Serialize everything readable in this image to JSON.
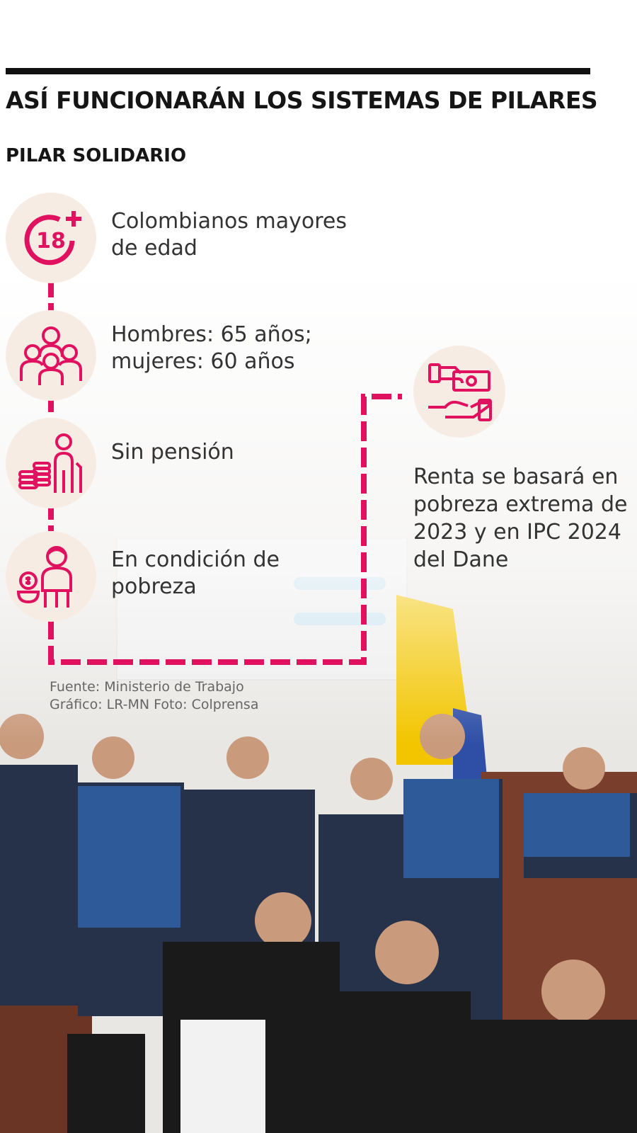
{
  "header": {
    "title": "ASÍ FUNCIONARÁN LOS SISTEMAS DE PILARES",
    "subtitle": "PILAR SOLIDARIO"
  },
  "steps": [
    {
      "icon": "age-18-plus-icon",
      "badge": "18",
      "text": "Colombianos mayores de edad"
    },
    {
      "icon": "family-group-icon",
      "text": "Hombres: 65 años; mujeres: 60 años"
    },
    {
      "icon": "elderly-coins-icon",
      "text": "Sin pensión"
    },
    {
      "icon": "poverty-person-icon",
      "text": "En condición de pobreza"
    }
  ],
  "result": {
    "icon": "hand-money-icon",
    "text": "Renta se basará en pobreza extrema de 2023 y en IPC 2024 del Dane"
  },
  "credits": {
    "source": "Fuente: Ministerio de Trabajo",
    "graphic": "Gráfico: LR-MN  Foto: Colprensa"
  },
  "colors": {
    "accent": "#e0115f",
    "circle_bg": "#f7ece3",
    "bar": "#111111",
    "flag_yellow": "#f2c500",
    "flag_blue": "#2f4fa6"
  }
}
